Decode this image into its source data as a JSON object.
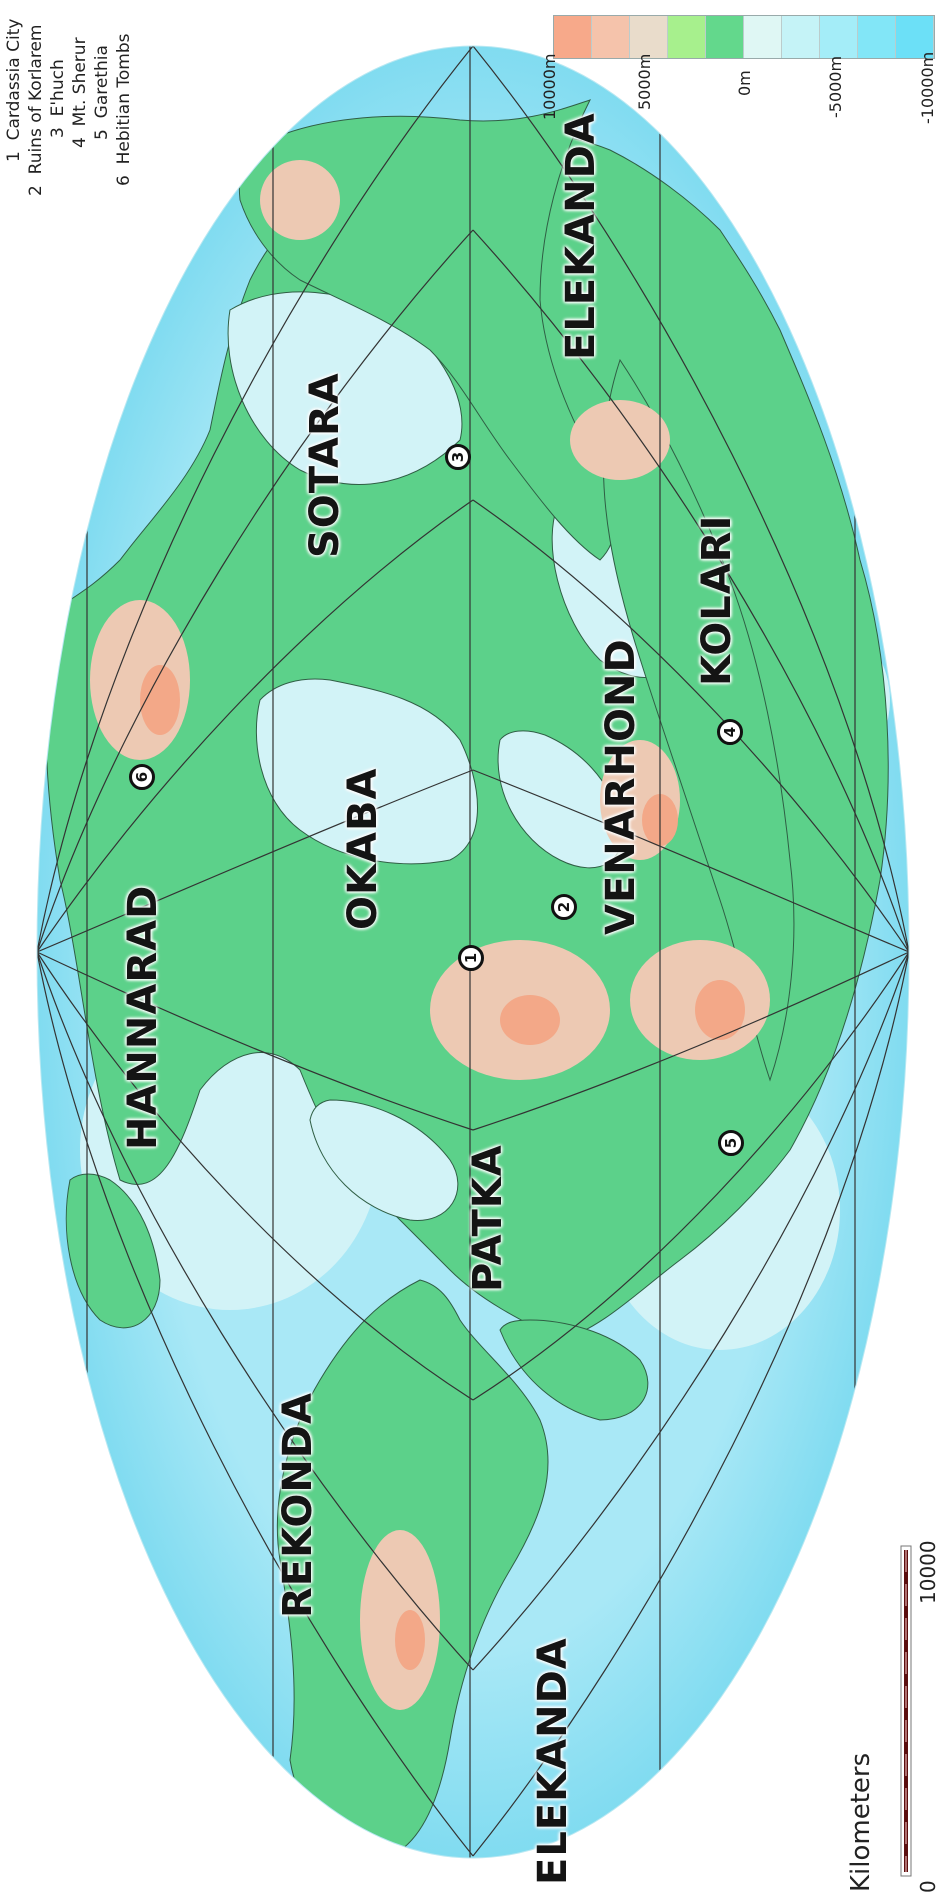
{
  "regions": [
    {
      "name": "HANNARAD"
    },
    {
      "name": "OKABA"
    },
    {
      "name": "SOTARA"
    },
    {
      "name": "ELEKANDA"
    },
    {
      "name": "KOLARI"
    },
    {
      "name": "VENARHOND"
    },
    {
      "name": "PATKA"
    },
    {
      "name": "REKONDA"
    },
    {
      "name": "ELEKANDA"
    }
  ],
  "legend": {
    "items": [
      {
        "number": "1",
        "label": "Cardassia City"
      },
      {
        "number": "2",
        "label": "Ruins of Korlarem"
      },
      {
        "number": "3",
        "label": "E'huch"
      },
      {
        "number": "4",
        "label": "Mt. Sherur"
      },
      {
        "number": "5",
        "label": "Garethia"
      },
      {
        "number": "6",
        "label": "Hebitian Tombs"
      }
    ]
  },
  "markers": [
    {
      "number": "1"
    },
    {
      "number": "2"
    },
    {
      "number": "3"
    },
    {
      "number": "4"
    },
    {
      "number": "5"
    },
    {
      "number": "6"
    }
  ],
  "elevation_scale": {
    "colors": [
      "#f7a98a",
      "#f5c3ab",
      "#e9dccb",
      "#a7f08d",
      "#63d88c",
      "#dff7f4",
      "#c5f3f7",
      "#a4edf8",
      "#82e6f7",
      "#6ce0f7"
    ],
    "ticks": [
      "10000m",
      "5000m",
      "0m",
      "-5000m",
      "-10000m"
    ]
  },
  "scale_bar": {
    "title": "Kilometers",
    "ticks": [
      "0",
      "10000"
    ]
  },
  "colors": {
    "ocean_deep": "#6fd6ee",
    "ocean": "#a9e8f6",
    "ocean_shallow": "#d2f3f7",
    "land_low": "#5cd18a",
    "land_mid": "#9ef08c",
    "land_high": "#edc9b3",
    "land_peak": "#f3a888",
    "grid": "#333333"
  }
}
